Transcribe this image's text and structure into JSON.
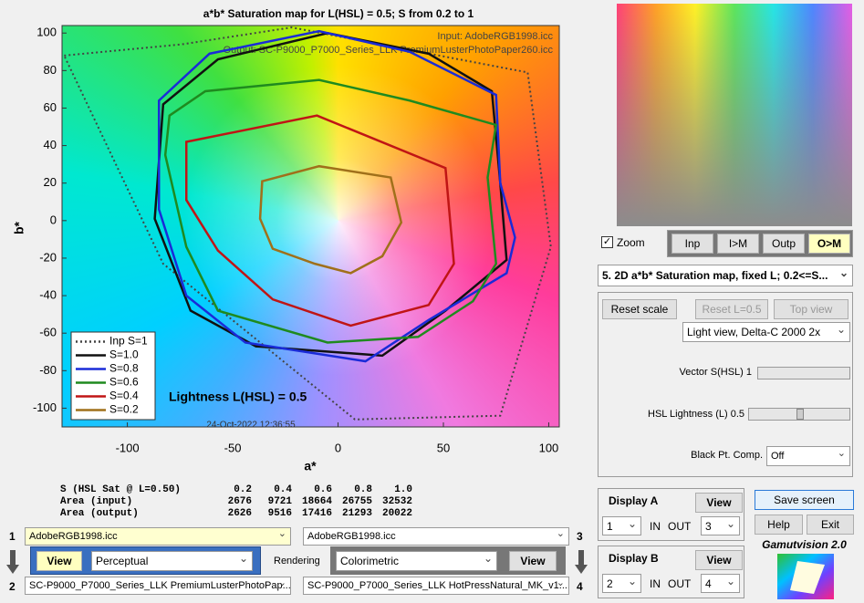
{
  "chart_data": {
    "type": "line",
    "title": "a*b* Saturation map for L(HSL) = 0.5;  S from 0.2 to 1",
    "xlabel": "a*",
    "ylabel": "b*",
    "annotations": [
      "Input:  AdobeRGB1998.icc",
      "Output: SC-P9000_P7000_Series_LLK PremiumLusterPhotoPaper260.icc",
      "Lightness L(HSL) = 0.5",
      "24-Oct-2022 12:36:55"
    ],
    "xlim": [
      -131,
      105
    ],
    "xticks": [
      -100,
      -50,
      0,
      50,
      100
    ],
    "ylim": [
      -110,
      104
    ],
    "yticks": [
      -100,
      -80,
      -60,
      -40,
      -20,
      0,
      20,
      40,
      60,
      80,
      100
    ],
    "legend": "lower left",
    "series": [
      {
        "name": "Inp S=1",
        "color": "#444444",
        "dashed": true,
        "x": [
          -130,
          -74,
          -22,
          90,
          101,
          77,
          8,
          -83
        ],
        "values": [
          88,
          94,
          103,
          79,
          -14,
          -104,
          -106,
          -23
        ]
      },
      {
        "name": "S=1.0",
        "color": "#111111",
        "x": [
          -83,
          -57,
          -5,
          43,
          73,
          77,
          80,
          51,
          21,
          -39,
          -70,
          -87
        ],
        "values": [
          62,
          86,
          100,
          89,
          69,
          20,
          -21,
          -48,
          -72,
          -67,
          -48,
          1
        ]
      },
      {
        "name": "S=0.8",
        "color": "#1a2bd8",
        "x": [
          -85,
          -61,
          -9,
          34,
          75,
          77,
          84,
          80,
          43,
          13,
          -44,
          -72,
          -85
        ],
        "values": [
          64,
          89,
          101,
          90,
          67,
          20,
          -9,
          -28,
          -53,
          -75,
          -65,
          -40,
          6
        ]
      },
      {
        "name": "S=0.6",
        "color": "#1f8a1f",
        "x": [
          -80,
          -63,
          -9,
          34,
          75,
          71,
          75,
          64,
          38,
          -5,
          -57,
          -72,
          -82
        ],
        "values": [
          56,
          69,
          75,
          64,
          51,
          23,
          -23,
          -43,
          -62,
          -65,
          -48,
          -14,
          35
        ]
      },
      {
        "name": "S=0.4",
        "color": "#c01515",
        "x": [
          -72,
          -10,
          51,
          55,
          43,
          6,
          -31,
          -57,
          -72
        ],
        "values": [
          42,
          56,
          28,
          -23,
          -45,
          -56,
          -42,
          -16,
          11
        ]
      },
      {
        "name": "S=0.2",
        "color": "#a0701a",
        "x": [
          -36,
          -9,
          25,
          30,
          21,
          6,
          -11,
          -31,
          -37
        ],
        "values": [
          21,
          29,
          23,
          -1,
          -19,
          -28,
          -23,
          -15,
          1
        ]
      }
    ]
  },
  "ui": {
    "zoom": "Zoom",
    "view_buttons": [
      "Inp",
      "I>M",
      "Outp",
      "O>M"
    ],
    "mode_select": "5.  2D a*b* Saturation map, fixed L;  0.2<=S...",
    "reset_scale": "Reset scale",
    "reset_l": "Reset L=0.5",
    "top_view": "Top view",
    "view_select": "Light view, Delta-C 2000 2x",
    "vector_label": "Vector S(HSL) 1",
    "lightness_label": "HSL Lightness (L) 0.5",
    "bpc_label": "Black Pt. Comp.",
    "bpc_value": "Off",
    "table": [
      [
        "S (HSL Sat @ L=0.50)",
        "0.2",
        "0.4",
        "0.6",
        "0.8",
        "1.0"
      ],
      [
        "Area (input)",
        "2676",
        "9721",
        "18664",
        "26755",
        "32532"
      ],
      [
        "Area (output)",
        "2626",
        "9516",
        "17416",
        "21293",
        "20022"
      ]
    ],
    "slot_labels": [
      "1",
      "2",
      "3",
      "4"
    ],
    "files": [
      "AdobeRGB1998.icc",
      "SC-P9000_P7000_Series_LLK PremiumLusterPhotoPap...",
      "AdobeRGB1998.icc",
      "SC-P9000_P7000_Series_LLK HotPressNatural_MK_v1...."
    ],
    "view": "View",
    "intent1": "Perceptual",
    "rendering": "Rendering",
    "intent2": "Colorimetric",
    "display_a": {
      "title": "Display A",
      "view": "View",
      "in": "1",
      "in_label": "IN",
      "out_label": "OUT",
      "out": "3"
    },
    "display_b": {
      "title": "Display B",
      "view": "View",
      "in": "2",
      "in_label": "IN",
      "out_label": "OUT",
      "out": "4"
    },
    "save": "Save screen",
    "help": "Help",
    "exit": "Exit",
    "app": "Gamutvision 2.0"
  }
}
